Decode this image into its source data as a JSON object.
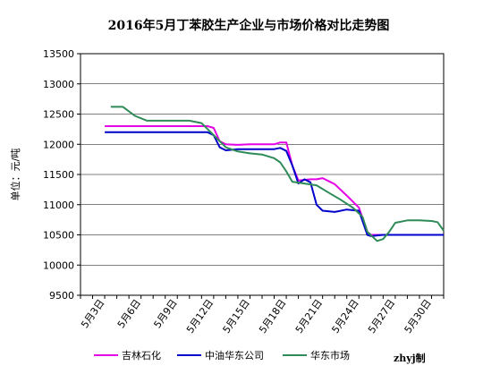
{
  "chart_data": {
    "type": "line",
    "title": "2016年5月丁苯胶生产企业与市场价格对比走势图",
    "ylabel": "单位：元/吨",
    "credit": "zhyj制",
    "ylim": [
      9500,
      13500
    ],
    "yticks": [
      9500,
      10000,
      10500,
      11000,
      11500,
      12000,
      12500,
      13000,
      13500
    ],
    "xlim": [
      1,
      31
    ],
    "xticks": [
      {
        "x": 3,
        "label": "5月3日"
      },
      {
        "x": 6,
        "label": "5月6日"
      },
      {
        "x": 9,
        "label": "5月9日"
      },
      {
        "x": 12,
        "label": "5月12日"
      },
      {
        "x": 15,
        "label": "5月15日"
      },
      {
        "x": 18,
        "label": "5月18日"
      },
      {
        "x": 21,
        "label": "5月21日"
      },
      {
        "x": 24,
        "label": "5月24日"
      },
      {
        "x": 27,
        "label": "5月27日"
      },
      {
        "x": 30,
        "label": "5月30日"
      }
    ],
    "grid": true,
    "legend": "bottom",
    "series": [
      {
        "name": "吉林石化",
        "color": "#e600e6",
        "points": [
          [
            3,
            12300
          ],
          [
            11.5,
            12300
          ],
          [
            12,
            12270
          ],
          [
            12.5,
            12050
          ],
          [
            13,
            12000
          ],
          [
            14,
            11990
          ],
          [
            15,
            12000
          ],
          [
            16,
            12000
          ],
          [
            17,
            12000
          ],
          [
            17.5,
            12030
          ],
          [
            18,
            12030
          ],
          [
            18.5,
            11650
          ],
          [
            19,
            11400
          ],
          [
            20,
            11420
          ],
          [
            20.5,
            11420
          ],
          [
            21,
            11440
          ],
          [
            22,
            11340
          ],
          [
            23,
            11150
          ],
          [
            24,
            10950
          ],
          [
            24.7,
            10550
          ],
          [
            25,
            10500
          ],
          [
            26,
            10500
          ],
          [
            27,
            10500
          ],
          [
            28,
            10500
          ],
          [
            29,
            10500
          ],
          [
            30,
            10500
          ],
          [
            31,
            10500
          ]
        ]
      },
      {
        "name": "中油华东公司",
        "color": "#0000cc",
        "points": [
          [
            3,
            12200
          ],
          [
            11.5,
            12200
          ],
          [
            12,
            12150
          ],
          [
            12.5,
            11950
          ],
          [
            13,
            11900
          ],
          [
            14,
            11920
          ],
          [
            15,
            11920
          ],
          [
            16,
            11920
          ],
          [
            17,
            11920
          ],
          [
            17.5,
            11940
          ],
          [
            18,
            11890
          ],
          [
            18.5,
            11650
          ],
          [
            19,
            11350
          ],
          [
            19.5,
            11420
          ],
          [
            20,
            11370
          ],
          [
            20.5,
            11000
          ],
          [
            21,
            10900
          ],
          [
            22,
            10880
          ],
          [
            23,
            10920
          ],
          [
            24,
            10900
          ],
          [
            24.7,
            10500
          ],
          [
            25,
            10480
          ],
          [
            26,
            10500
          ],
          [
            27,
            10500
          ],
          [
            28,
            10500
          ],
          [
            29,
            10500
          ],
          [
            30,
            10500
          ],
          [
            31,
            10500
          ]
        ]
      },
      {
        "name": "华东市场",
        "color": "#2e8b57",
        "points": [
          [
            3.5,
            12620
          ],
          [
            4.5,
            12620
          ],
          [
            5.5,
            12470
          ],
          [
            6.5,
            12390
          ],
          [
            8,
            12390
          ],
          [
            9,
            12390
          ],
          [
            10,
            12390
          ],
          [
            11,
            12350
          ],
          [
            12,
            12150
          ],
          [
            13,
            11950
          ],
          [
            14,
            11880
          ],
          [
            15,
            11850
          ],
          [
            16,
            11830
          ],
          [
            17,
            11770
          ],
          [
            17.5,
            11700
          ],
          [
            18,
            11550
          ],
          [
            18.5,
            11380
          ],
          [
            19.5,
            11350
          ],
          [
            20.5,
            11320
          ],
          [
            21.5,
            11200
          ],
          [
            22.5,
            11080
          ],
          [
            23.5,
            10950
          ],
          [
            24.3,
            10800
          ],
          [
            24.7,
            10550
          ],
          [
            25.5,
            10400
          ],
          [
            26,
            10430
          ],
          [
            26.5,
            10550
          ],
          [
            27,
            10700
          ],
          [
            28,
            10740
          ],
          [
            29,
            10740
          ],
          [
            30,
            10730
          ],
          [
            30.5,
            10710
          ],
          [
            31,
            10570
          ]
        ]
      }
    ]
  }
}
